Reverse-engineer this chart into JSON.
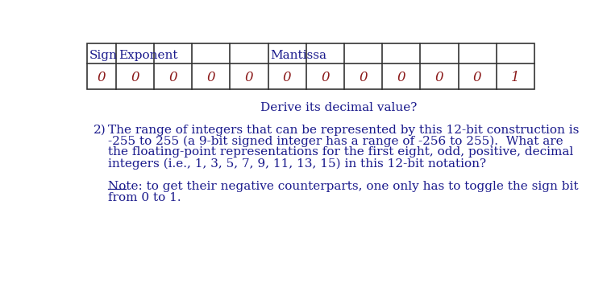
{
  "bg_color": "#ffffff",
  "table_values": [
    "0",
    "0",
    "0",
    "0",
    "0",
    "0",
    "0",
    "0",
    "0",
    "0",
    "0",
    "1"
  ],
  "header_color": "#1a1a8c",
  "value_color": "#8b1a1a",
  "text_color": "#1a1a8c",
  "derive_text": "Derive its decimal value?",
  "paragraph2_label": "2)",
  "paragraph2_lines": [
    "The range of integers that can be represented by this 12-bit construction is",
    "-255 to 255 (a 9-bit signed integer has a range of -256 to 255).  What are",
    "the floating-point representations for the first eight, odd, positive, decimal",
    "integers (i.e., 1, 3, 5, 7, 9, 11, 13, 15) in this 12-bit notation?"
  ],
  "note_label": "Note",
  "note_line0": ": to get their negative counterparts, one only has to toggle the sign bit",
  "note_line1": "from 0 to 1.",
  "font_size": 11,
  "font_family": "serif"
}
